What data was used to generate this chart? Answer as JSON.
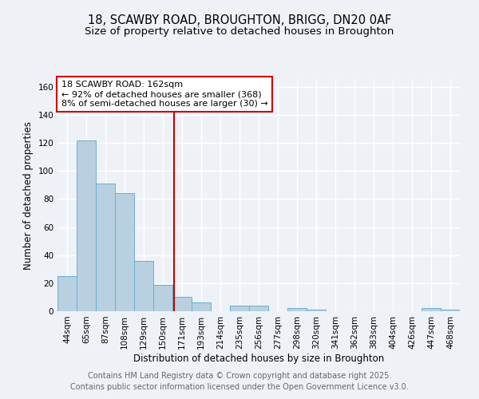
{
  "title_line1": "18, SCAWBY ROAD, BROUGHTON, BRIGG, DN20 0AF",
  "title_line2": "Size of property relative to detached houses in Broughton",
  "xlabel": "Distribution of detached houses by size in Broughton",
  "ylabel": "Number of detached properties",
  "categories": [
    "44sqm",
    "65sqm",
    "87sqm",
    "108sqm",
    "129sqm",
    "150sqm",
    "171sqm",
    "193sqm",
    "214sqm",
    "235sqm",
    "256sqm",
    "277sqm",
    "298sqm",
    "320sqm",
    "341sqm",
    "362sqm",
    "383sqm",
    "404sqm",
    "426sqm",
    "447sqm",
    "468sqm"
  ],
  "values": [
    25,
    122,
    91,
    84,
    36,
    19,
    10,
    6,
    0,
    4,
    4,
    0,
    2,
    1,
    0,
    0,
    0,
    0,
    0,
    2,
    1
  ],
  "bar_color": "#b8d0e0",
  "bar_edge_color": "#6aafd4",
  "vline_color": "#cc0000",
  "annotation_line1": "18 SCAWBY ROAD: 162sqm",
  "annotation_line2": "← 92% of detached houses are smaller (368)",
  "annotation_line3": "8% of semi-detached houses are larger (30) →",
  "annotation_box_color": "#ffffff",
  "annotation_box_edge_color": "#cc0000",
  "ylim": [
    0,
    165
  ],
  "yticks": [
    0,
    20,
    40,
    60,
    80,
    100,
    120,
    140,
    160
  ],
  "footer_line1": "Contains HM Land Registry data © Crown copyright and database right 2025.",
  "footer_line2": "Contains public sector information licensed under the Open Government Licence v3.0.",
  "bg_color": "#eef2f7",
  "plot_bg_color": "#eef2f7",
  "grid_color": "#ffffff",
  "title_fontsize": 10.5,
  "subtitle_fontsize": 9.5,
  "axis_label_fontsize": 8.5,
  "tick_fontsize": 7.5,
  "footer_fontsize": 7,
  "annotation_fontsize": 8
}
